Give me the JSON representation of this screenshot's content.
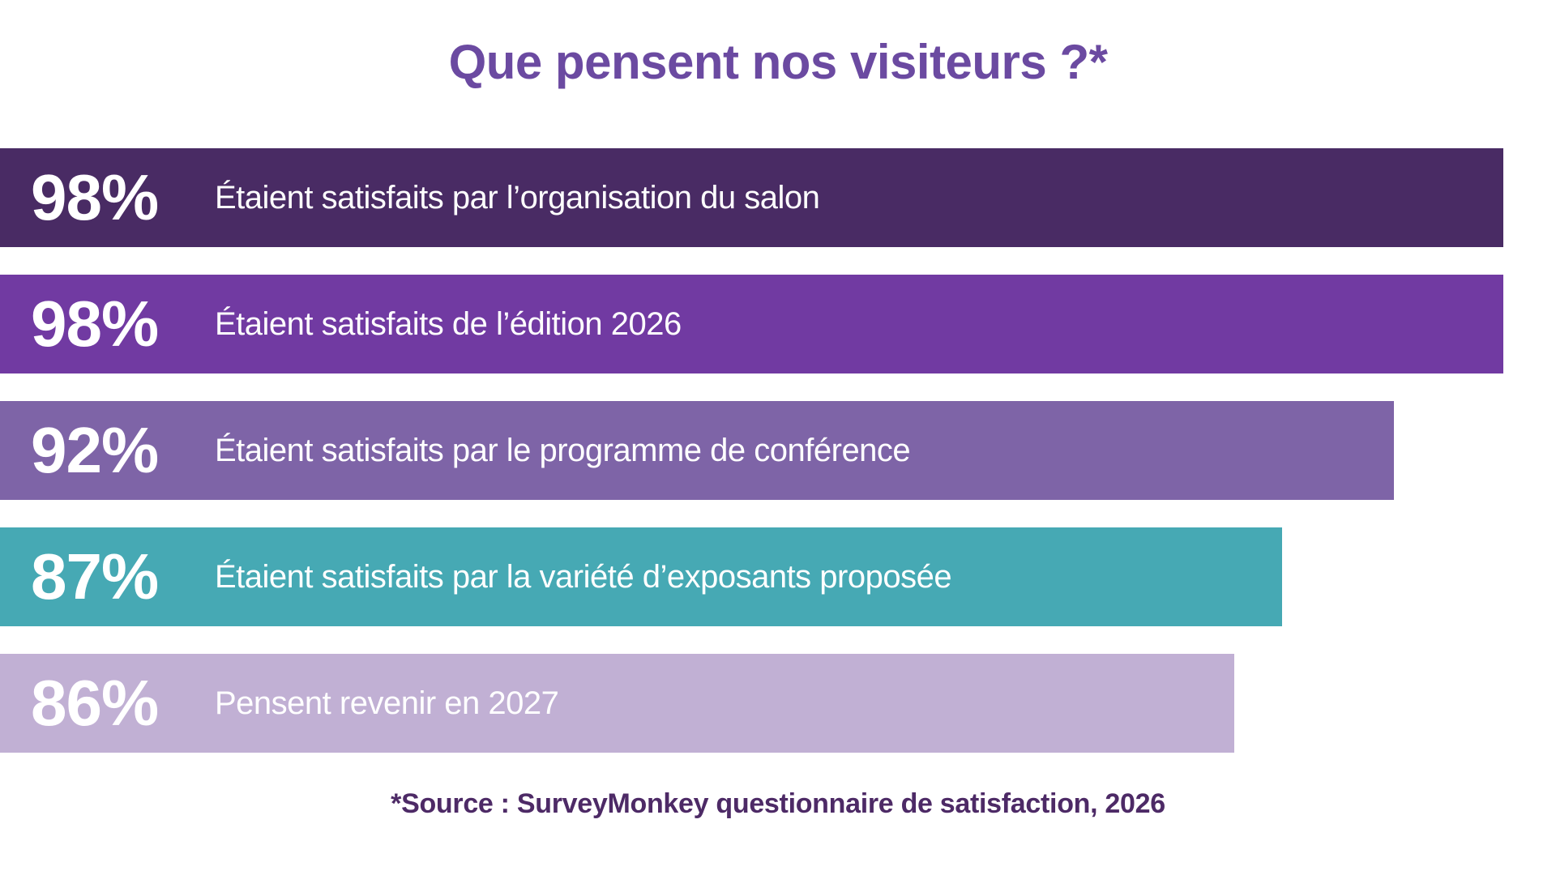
{
  "title": {
    "text": "Que pensent nos visiteurs ?*"
  },
  "source": {
    "text": "*Source : SurveyMonkey questionnaire de satisfaction, 2026"
  },
  "theme": {
    "background": "#ffffff",
    "title_color": "#6B4AA1",
    "source_color": "#4D2A66",
    "bar_text_color": "#ffffff"
  },
  "bars": [
    {
      "percent": "98%",
      "label": "Étaient satisfaits par l’organisation du salon",
      "color": "#492B64",
      "width_pct": 96.6
    },
    {
      "percent": "98%",
      "label": "Étaient satisfaits de l’édition 2026",
      "color": "#713AA2",
      "width_pct": 96.6
    },
    {
      "percent": "92%",
      "label": "Étaient satisfaits par le programme de conférence",
      "color": "#7E64A7",
      "width_pct": 89.6
    },
    {
      "percent": "87%",
      "label": "Étaient satisfaits par la variété d’exposants proposée",
      "color": "#46A9B4",
      "width_pct": 82.4
    },
    {
      "percent": "86%",
      "label": "Pensent revenir en 2027",
      "color": "#C1B0D4",
      "width_pct": 79.3
    }
  ],
  "chart_data": {
    "type": "bar",
    "orientation": "horizontal",
    "title": "Que pensent nos visiteurs ?*",
    "categories": [
      "Étaient satisfaits par l’organisation du salon",
      "Étaient satisfaits de l’édition 2026",
      "Étaient satisfaits par le programme de conférence",
      "Étaient satisfaits par la variété d’exposants proposée",
      "Pensent revenir en 2027"
    ],
    "values": [
      98,
      98,
      92,
      87,
      86
    ],
    "unit": "%",
    "xlim": [
      0,
      100
    ],
    "grid": false,
    "legend": false,
    "value_label_position": "inside-left",
    "bar_colors": [
      "#492B64",
      "#713AA2",
      "#7E64A7",
      "#46A9B4",
      "#C1B0D4"
    ],
    "source": "*Source : SurveyMonkey questionnaire de satisfaction, 2026"
  }
}
